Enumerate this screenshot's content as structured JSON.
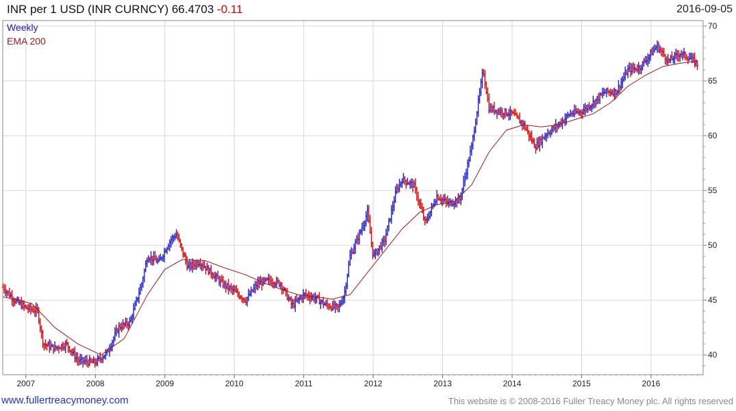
{
  "header": {
    "title": "INR per 1 USD (INR CURNCY) 66.4703",
    "change": "-0.11",
    "date": "2016-09-05"
  },
  "footer": {
    "site": "www.fullertreacymoney.com",
    "copyright": "This website is © 2008-2016 Fuller Treacy Money plc. All rights reserved"
  },
  "colors": {
    "up": "#1a1acc",
    "down": "#e00000",
    "ema": "#a01818",
    "grid": "#d8d8d8",
    "frame": "#888888"
  },
  "chart_data": {
    "type": "line",
    "series": [
      {
        "name": "Weekly",
        "style": "ohlc-bars",
        "x": [
          "2006-09",
          "2006-11",
          "2007-01",
          "2007-03",
          "2007-04",
          "2007-06",
          "2007-08",
          "2007-10",
          "2007-11",
          "2008-01",
          "2008-03",
          "2008-05",
          "2008-07",
          "2008-09",
          "2008-10",
          "2008-12",
          "2009-02",
          "2009-03",
          "2009-05",
          "2009-07",
          "2009-09",
          "2009-11",
          "2010-01",
          "2010-03",
          "2010-05",
          "2010-07",
          "2010-09",
          "2010-11",
          "2011-01",
          "2011-03",
          "2011-05",
          "2011-07",
          "2011-08",
          "2011-09",
          "2011-11",
          "2011-12",
          "2012-01",
          "2012-03",
          "2012-05",
          "2012-06",
          "2012-08",
          "2012-10",
          "2012-12",
          "2013-02",
          "2013-04",
          "2013-06",
          "2013-08",
          "2013-09",
          "2013-11",
          "2014-01",
          "2014-03",
          "2014-05",
          "2014-07",
          "2014-09",
          "2014-11",
          "2015-01",
          "2015-03",
          "2015-05",
          "2015-07",
          "2015-09",
          "2015-11",
          "2016-01",
          "2016-02",
          "2016-04",
          "2016-06",
          "2016-08",
          "2016-09"
        ],
        "values": [
          46.2,
          45.0,
          44.3,
          44.0,
          41.0,
          40.6,
          41.0,
          39.5,
          39.4,
          39.3,
          40.2,
          42.5,
          43.0,
          46.5,
          49.0,
          48.5,
          50.5,
          51.0,
          48.0,
          48.5,
          47.5,
          46.5,
          45.8,
          45.0,
          46.5,
          46.8,
          46.5,
          44.5,
          45.5,
          45.2,
          44.5,
          44.3,
          45.5,
          49.0,
          51.5,
          53.0,
          49.0,
          50.5,
          55.0,
          56.0,
          55.5,
          52.0,
          54.5,
          53.8,
          54.2,
          59.0,
          66.0,
          62.5,
          62.2,
          62.0,
          61.0,
          59.0,
          60.2,
          61.0,
          62.0,
          62.2,
          63.0,
          64.0,
          64.0,
          66.0,
          66.2,
          67.5,
          68.2,
          66.8,
          67.5,
          67.0,
          66.5
        ]
      },
      {
        "name": "EMA 200",
        "style": "line",
        "x": [
          "2006-09",
          "2007-02",
          "2007-06",
          "2007-10",
          "2008-02",
          "2008-06",
          "2008-10",
          "2009-01",
          "2009-04",
          "2009-08",
          "2009-11",
          "2010-03",
          "2010-06",
          "2010-09",
          "2010-12",
          "2011-03",
          "2011-06",
          "2011-09",
          "2011-12",
          "2012-03",
          "2012-06",
          "2012-09",
          "2012-12",
          "2013-03",
          "2013-06",
          "2013-09",
          "2013-12",
          "2014-03",
          "2014-06",
          "2014-09",
          "2014-12",
          "2015-03",
          "2015-06",
          "2015-09",
          "2015-12",
          "2016-03",
          "2016-06",
          "2016-09"
        ],
        "values": [
          45.3,
          44.7,
          42.5,
          41.0,
          40.0,
          41.5,
          45.5,
          47.8,
          48.7,
          48.6,
          48.0,
          47.3,
          46.6,
          46.0,
          45.5,
          45.3,
          45.1,
          45.5,
          47.5,
          49.5,
          51.5,
          53.0,
          53.7,
          54.0,
          55.5,
          58.5,
          60.5,
          61.0,
          60.8,
          61.0,
          61.5,
          62.0,
          63.0,
          64.5,
          65.5,
          66.3,
          66.6,
          66.8
        ]
      }
    ],
    "x_tick_labels": [
      "2007",
      "2008",
      "2009",
      "2010",
      "2011",
      "2012",
      "2013",
      "2014",
      "2015",
      "2016"
    ],
    "y_tick_labels": [
      "40",
      "45",
      "50",
      "55",
      "60",
      "65",
      "70"
    ],
    "ylim": [
      38.2,
      70.5
    ],
    "xlim": [
      "2006-09",
      "2016-10"
    ],
    "y_axis_side": "right",
    "grid": true,
    "legend": [
      "Weekly",
      "EMA 200"
    ],
    "legend_placement": "top-left"
  }
}
